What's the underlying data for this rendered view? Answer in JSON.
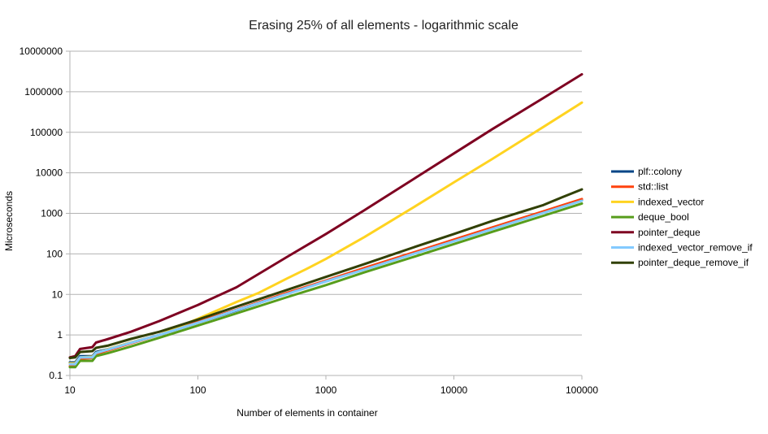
{
  "chart_data": {
    "type": "line",
    "title": "Erasing 25% of all elements - logarithmic scale",
    "xlabel": "Number of elements in container",
    "ylabel": "Microseconds",
    "x_scale": "log",
    "y_scale": "log",
    "xlim": [
      10,
      100000
    ],
    "ylim": [
      0.1,
      10000000
    ],
    "x_ticks": [
      "10",
      "100",
      "1000",
      "10000",
      "100000"
    ],
    "y_ticks": [
      "0.1",
      "1",
      "10",
      "100",
      "1000",
      "10000",
      "100000",
      "1000000",
      "10000000"
    ],
    "grid": "horizontal",
    "legend": "right",
    "series": [
      {
        "name": "plf::colony",
        "color": "#004586",
        "points": [
          [
            10,
            0.21
          ],
          [
            11,
            0.21
          ],
          [
            12,
            0.3
          ],
          [
            15,
            0.3
          ],
          [
            16,
            0.38
          ],
          [
            20,
            0.45
          ],
          [
            30,
            0.65
          ],
          [
            50,
            1.0
          ],
          [
            100,
            2.0
          ],
          [
            200,
            4.0
          ],
          [
            500,
            10.5
          ],
          [
            1000,
            21
          ],
          [
            2000,
            42
          ],
          [
            5000,
            105
          ],
          [
            10000,
            210
          ],
          [
            20000,
            420
          ],
          [
            50000,
            1050
          ],
          [
            100000,
            2100
          ]
        ]
      },
      {
        "name": "std::list",
        "color": "#ff420e",
        "points": [
          [
            10,
            0.17
          ],
          [
            11,
            0.18
          ],
          [
            12,
            0.26
          ],
          [
            15,
            0.27
          ],
          [
            16,
            0.34
          ],
          [
            20,
            0.42
          ],
          [
            30,
            0.62
          ],
          [
            50,
            1.0
          ],
          [
            100,
            2.1
          ],
          [
            200,
            4.2
          ],
          [
            500,
            11
          ],
          [
            1000,
            22
          ],
          [
            2000,
            45
          ],
          [
            5000,
            112
          ],
          [
            10000,
            225
          ],
          [
            20000,
            450
          ],
          [
            50000,
            1120
          ],
          [
            100000,
            2250
          ]
        ]
      },
      {
        "name": "indexed_vector",
        "color": "#ffd320",
        "points": [
          [
            10,
            0.2
          ],
          [
            11,
            0.2
          ],
          [
            12,
            0.28
          ],
          [
            15,
            0.29
          ],
          [
            16,
            0.36
          ],
          [
            20,
            0.45
          ],
          [
            30,
            0.65
          ],
          [
            50,
            1.0
          ],
          [
            100,
            2.5
          ],
          [
            200,
            6.5
          ],
          [
            300,
            11
          ],
          [
            500,
            25
          ],
          [
            700,
            42
          ],
          [
            1000,
            75
          ],
          [
            2000,
            260
          ],
          [
            5000,
            1500
          ],
          [
            10000,
            5800
          ],
          [
            20000,
            22000
          ],
          [
            50000,
            135000
          ],
          [
            100000,
            540000
          ]
        ]
      },
      {
        "name": "deque_bool",
        "color": "#579d1c",
        "points": [
          [
            10,
            0.16
          ],
          [
            11,
            0.16
          ],
          [
            12,
            0.23
          ],
          [
            15,
            0.23
          ],
          [
            16,
            0.3
          ],
          [
            20,
            0.36
          ],
          [
            30,
            0.52
          ],
          [
            50,
            0.85
          ],
          [
            100,
            1.7
          ],
          [
            200,
            3.4
          ],
          [
            500,
            8.6
          ],
          [
            1000,
            17
          ],
          [
            2000,
            35
          ],
          [
            5000,
            87
          ],
          [
            10000,
            175
          ],
          [
            20000,
            350
          ],
          [
            50000,
            870
          ],
          [
            100000,
            1750
          ]
        ]
      },
      {
        "name": "pointer_deque",
        "color": "#7e0021",
        "points": [
          [
            10,
            0.28
          ],
          [
            11,
            0.3
          ],
          [
            12,
            0.45
          ],
          [
            15,
            0.5
          ],
          [
            16,
            0.65
          ],
          [
            20,
            0.8
          ],
          [
            30,
            1.2
          ],
          [
            50,
            2.2
          ],
          [
            100,
            5.5
          ],
          [
            200,
            15
          ],
          [
            500,
            85
          ],
          [
            1000,
            310
          ],
          [
            2000,
            1200
          ],
          [
            5000,
            7500
          ],
          [
            10000,
            30000
          ],
          [
            20000,
            120000
          ],
          [
            50000,
            700000
          ],
          [
            100000,
            2700000
          ]
        ]
      },
      {
        "name": "indexed_vector_remove_if",
        "color": "#83caff",
        "points": [
          [
            10,
            0.19
          ],
          [
            11,
            0.19
          ],
          [
            12,
            0.28
          ],
          [
            15,
            0.28
          ],
          [
            16,
            0.36
          ],
          [
            20,
            0.44
          ],
          [
            30,
            0.64
          ],
          [
            50,
            1.0
          ],
          [
            100,
            2.0
          ],
          [
            200,
            4.1
          ],
          [
            500,
            10.3
          ],
          [
            1000,
            21
          ],
          [
            2000,
            41
          ],
          [
            5000,
            103
          ],
          [
            10000,
            205
          ],
          [
            20000,
            410
          ],
          [
            50000,
            1030
          ],
          [
            100000,
            2050
          ]
        ]
      },
      {
        "name": "pointer_deque_remove_if",
        "color": "#314004",
        "points": [
          [
            10,
            0.27
          ],
          [
            11,
            0.28
          ],
          [
            12,
            0.38
          ],
          [
            15,
            0.4
          ],
          [
            16,
            0.48
          ],
          [
            20,
            0.55
          ],
          [
            30,
            0.8
          ],
          [
            50,
            1.2
          ],
          [
            100,
            2.4
          ],
          [
            200,
            5.0
          ],
          [
            500,
            13
          ],
          [
            1000,
            27
          ],
          [
            2000,
            56
          ],
          [
            5000,
            150
          ],
          [
            10000,
            310
          ],
          [
            20000,
            650
          ],
          [
            50000,
            1600
          ],
          [
            70000,
            2500
          ],
          [
            100000,
            3900
          ]
        ]
      }
    ]
  }
}
